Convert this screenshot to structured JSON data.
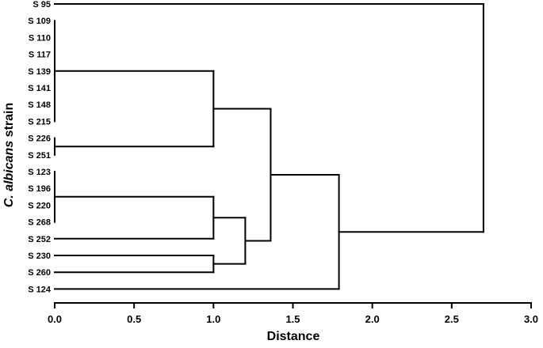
{
  "chart_data": {
    "type": "dendrogram",
    "xlabel": "Distance",
    "ylabel_italic": "C. albicans",
    "ylabel_rest": " strain",
    "xlim": [
      0.0,
      3.0
    ],
    "x_ticks": [
      "0.0",
      "0.5",
      "1.0",
      "1.5",
      "2.0",
      "2.5",
      "3.0"
    ],
    "leaves": [
      "S 95",
      "S 109",
      "S 110",
      "S 117",
      "S 139",
      "S 141",
      "S 148",
      "S 215",
      "S 226",
      "S 251",
      "S 123",
      "S 196",
      "S 220",
      "S 268",
      "S 252",
      "S 230",
      "S 260",
      "S 124"
    ],
    "merges": [
      {
        "id": "A",
        "children": [
          "S 109",
          "S 110",
          "S 117",
          "S 139",
          "S 141",
          "S 148",
          "S 215"
        ],
        "height": 0.0
      },
      {
        "id": "B",
        "children": [
          "S 226",
          "S 251"
        ],
        "height": 0.0
      },
      {
        "id": "C",
        "children": [
          "A",
          "B"
        ],
        "height": 1.0
      },
      {
        "id": "D",
        "children": [
          "S 123",
          "S 196",
          "S 220",
          "S 268"
        ],
        "height": 0.0
      },
      {
        "id": "E",
        "children": [
          "D",
          "S 252"
        ],
        "height": 1.0
      },
      {
        "id": "F",
        "children": [
          "S 230",
          "S 260"
        ],
        "height": 1.0
      },
      {
        "id": "G",
        "children": [
          "E",
          "F"
        ],
        "height": 1.2
      },
      {
        "id": "H",
        "children": [
          "C",
          "G"
        ],
        "height": 1.36
      },
      {
        "id": "I",
        "children": [
          "H",
          "S 124"
        ],
        "height": 1.79
      },
      {
        "id": "J",
        "children": [
          "S 95",
          "I"
        ],
        "height": 2.7
      }
    ]
  }
}
